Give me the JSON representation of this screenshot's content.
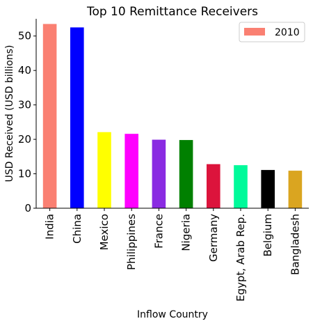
{
  "chart_data": {
    "type": "bar",
    "title": "Top 10 Remittance Receivers",
    "xlabel": "Inflow Country",
    "ylabel": "USD Received (USD billions)",
    "ylim": [
      0,
      55
    ],
    "yticks": [
      0,
      10,
      20,
      30,
      40,
      50
    ],
    "grid": false,
    "legend": {
      "placement": "top-right",
      "entries": [
        "2010"
      ]
    },
    "categories": [
      "India",
      "China",
      "Mexico",
      "Philippines",
      "France",
      "Nigeria",
      "Germany",
      "Egypt, Arab Rep.",
      "Belgium",
      "Bangladesh"
    ],
    "series": [
      {
        "name": "2010",
        "values": [
          53.5,
          52.5,
          22.1,
          21.6,
          19.9,
          19.8,
          12.8,
          12.5,
          11.1,
          10.9
        ]
      }
    ],
    "colors": [
      "#fa8072",
      "#0000ff",
      "#ffff00",
      "#ff00ff",
      "#8a2be2",
      "#008000",
      "#dc143c",
      "#00fa9a",
      "#000000",
      "#daa520"
    ]
  }
}
